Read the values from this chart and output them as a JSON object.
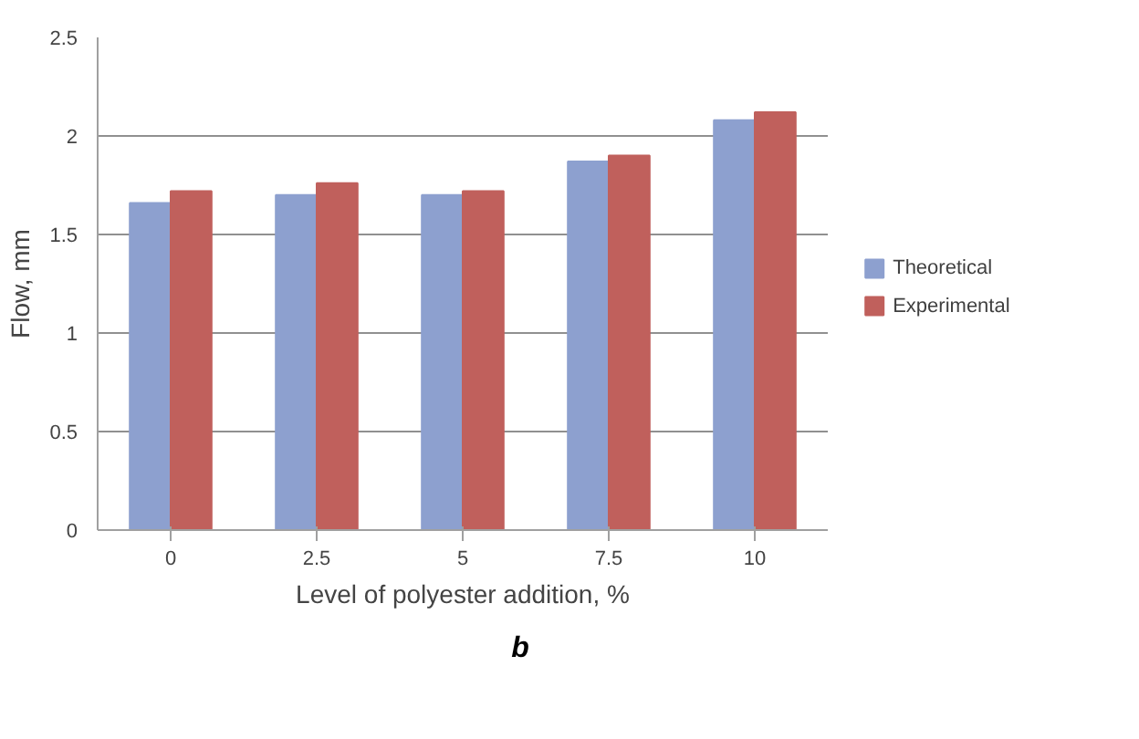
{
  "chart_data": {
    "type": "bar",
    "xlabel": "Level of polyester addition, %",
    "ylabel": "Flow, mm",
    "categories": [
      "0",
      "2.5",
      "5",
      "7.5",
      "10"
    ],
    "series": [
      {
        "name": "Theoretical",
        "color": "#8da0cf",
        "values": [
          1.66,
          1.7,
          1.7,
          1.87,
          2.08
        ]
      },
      {
        "name": "Experimental",
        "color": "#c0605c",
        "values": [
          1.72,
          1.76,
          1.72,
          1.9,
          2.12
        ]
      }
    ],
    "ylim": [
      0,
      2.5
    ],
    "yticks": [
      0,
      0.5,
      1,
      1.5,
      2,
      2.5
    ],
    "grid": "y",
    "legend": "right",
    "annotations": [
      "b"
    ]
  }
}
